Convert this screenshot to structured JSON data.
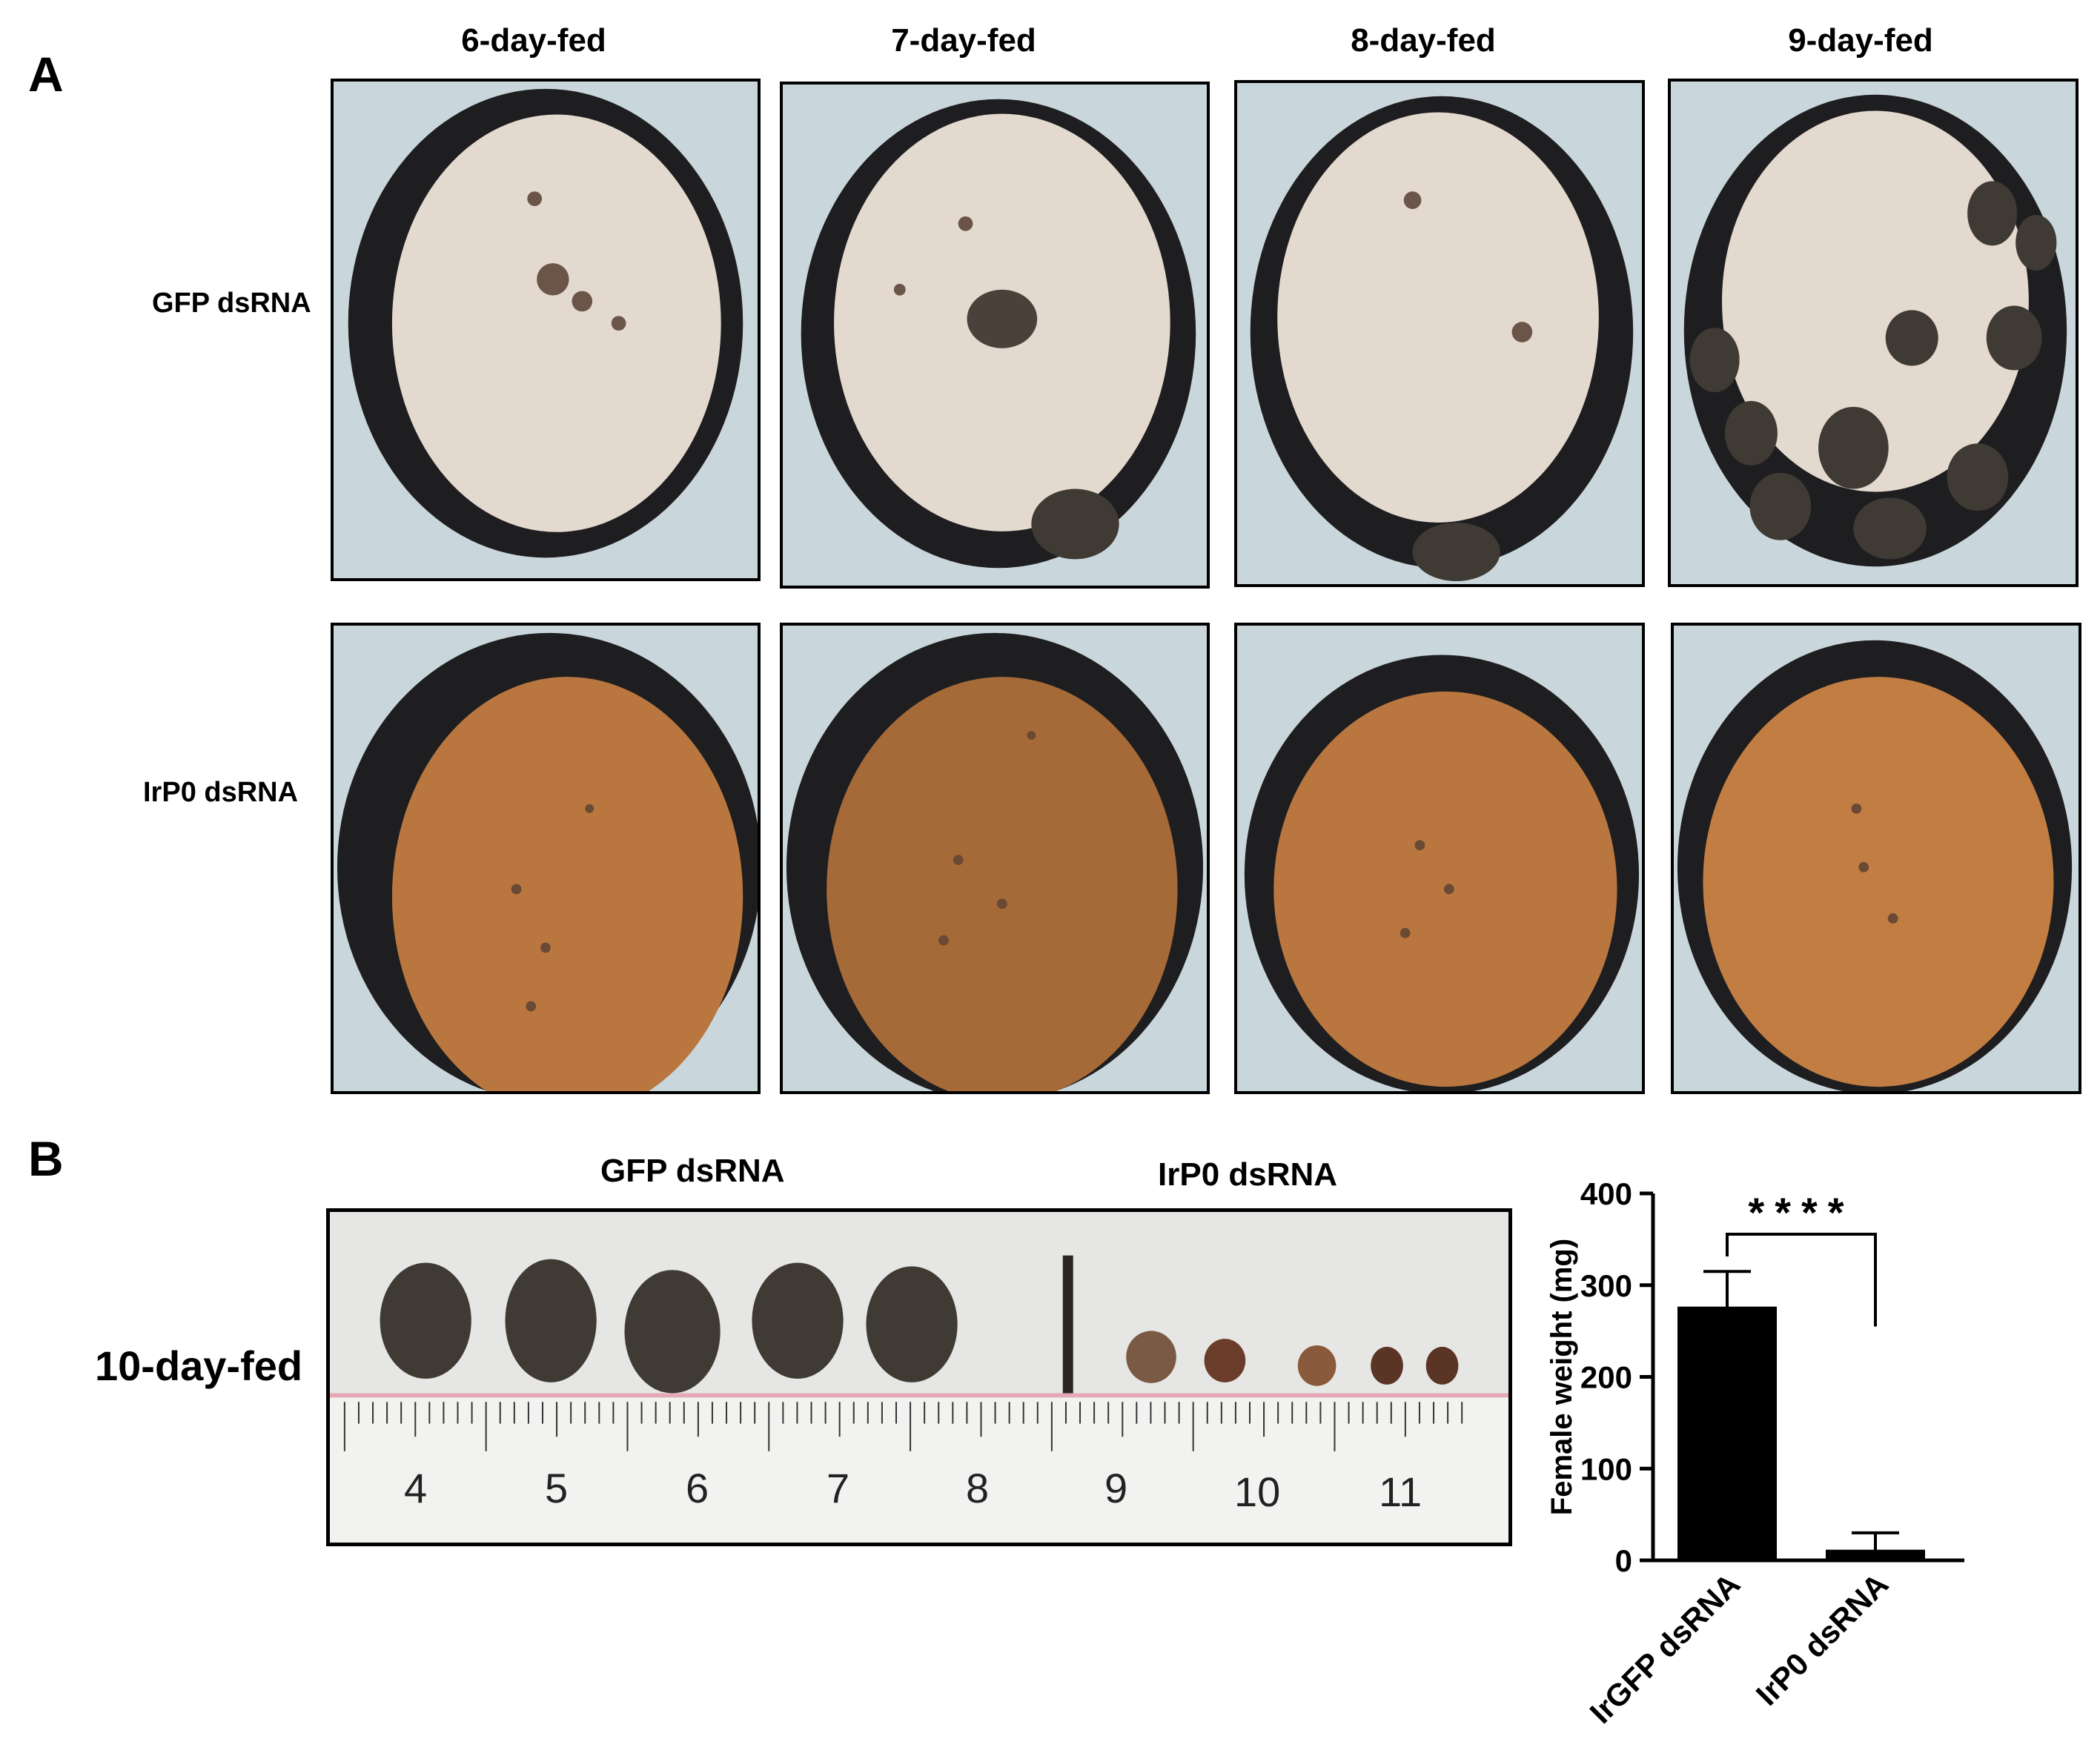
{
  "panel_a": {
    "letter": "A",
    "columns": [
      "6-day-fed",
      "7-day-fed",
      "8-day-fed",
      "9-day-fed"
    ],
    "rows": [
      "GFP dsRNA",
      "IrP0 dsRNA"
    ],
    "colors": {
      "gfp_fur": "#e4d9cf",
      "irp0_fur": "#b9773f",
      "ring": "#1e1e20",
      "backdrop": "#c9d6db",
      "tick_engorged": "#3f3a34"
    }
  },
  "panel_b": {
    "letter": "B",
    "group_gfp": "GFP dsRNA",
    "group_irp0": "IrP0 dsRNA",
    "row_label": "10-day-fed",
    "ruler_numbers": [
      "4",
      "5",
      "6",
      "7",
      "8",
      "9",
      "10",
      "11"
    ]
  },
  "chart_data": {
    "type": "bar",
    "categories": [
      "IrGFP dsRNA",
      "IrP0 dsRNA"
    ],
    "values": [
      275,
      10
    ],
    "error_upper": [
      315,
      30
    ],
    "ylabel": "Female weight (mg)",
    "ylim": [
      0,
      400
    ],
    "yticks": [
      0,
      100,
      200,
      300,
      400
    ],
    "significance": "****",
    "grid": false,
    "bar_color": "#000000"
  }
}
